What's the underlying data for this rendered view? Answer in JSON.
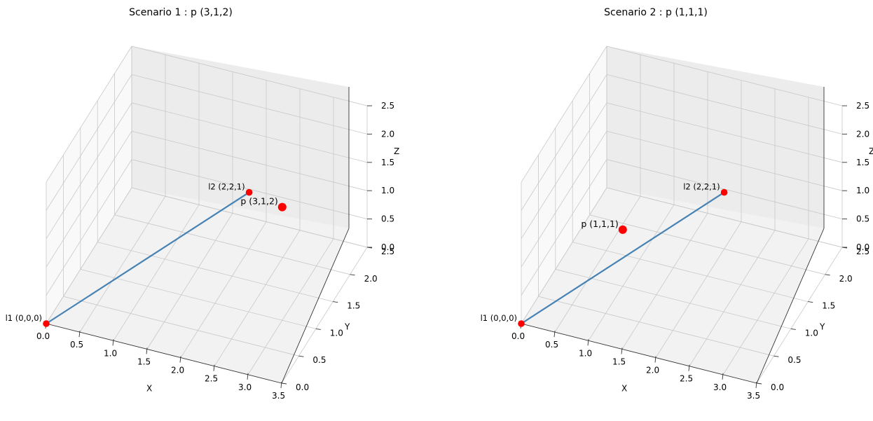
{
  "chart_data": [
    {
      "type": "scatter3d",
      "title": "Scenario 1 : p (3,1,2)",
      "xlabel": "X",
      "ylabel": "Y",
      "zlabel": "Z",
      "xlim": [
        0,
        3.5
      ],
      "ylim": [
        0,
        2.5
      ],
      "zlim": [
        0,
        2.5
      ],
      "xticks": [
        "0.0",
        "0.5",
        "1.0",
        "1.5",
        "2.0",
        "2.5",
        "3.0",
        "3.5"
      ],
      "yticks": [
        "0.0",
        "0.5",
        "1.0",
        "1.5",
        "2.0",
        "2.5"
      ],
      "zticks": [
        "0.0",
        "0.5",
        "1.0",
        "1.5",
        "2.0",
        "2.5"
      ],
      "grid": true,
      "line": {
        "from": [
          0,
          0,
          0
        ],
        "to": [
          2,
          2,
          1
        ],
        "color": "#4682b4"
      },
      "points": [
        {
          "label": "l1 (0,0,0)",
          "x": 0,
          "y": 0,
          "z": 0,
          "color": "#ff0000",
          "size": "small"
        },
        {
          "label": "l2 (2,2,1)",
          "x": 2,
          "y": 2,
          "z": 1,
          "color": "#ff0000",
          "size": "small"
        },
        {
          "label": "p (3,1,2)",
          "x": 3,
          "y": 1,
          "z": 2,
          "color": "#ff0000",
          "size": "large"
        }
      ]
    },
    {
      "type": "scatter3d",
      "title": "Scenario 2 : p (1,1,1)",
      "xlabel": "X",
      "ylabel": "Y",
      "zlabel": "Z",
      "xlim": [
        0,
        3.5
      ],
      "ylim": [
        0,
        2.5
      ],
      "zlim": [
        0,
        2.5
      ],
      "xticks": [
        "0.0",
        "0.5",
        "1.0",
        "1.5",
        "2.0",
        "2.5",
        "3.0",
        "3.5"
      ],
      "yticks": [
        "0.0",
        "0.5",
        "1.0",
        "1.5",
        "2.0",
        "2.5"
      ],
      "zticks": [
        "0.0",
        "0.5",
        "1.0",
        "1.5",
        "2.0",
        "2.5"
      ],
      "grid": true,
      "line": {
        "from": [
          0,
          0,
          0
        ],
        "to": [
          2,
          2,
          1
        ],
        "color": "#4682b4"
      },
      "points": [
        {
          "label": "l1 (0,0,0)",
          "x": 0,
          "y": 0,
          "z": 0,
          "color": "#ff0000",
          "size": "small"
        },
        {
          "label": "l2 (2,2,1)",
          "x": 2,
          "y": 2,
          "z": 1,
          "color": "#ff0000",
          "size": "small"
        },
        {
          "label": "p (1,1,1)",
          "x": 1,
          "y": 1,
          "z": 1,
          "color": "#ff0000",
          "size": "large"
        }
      ]
    }
  ]
}
